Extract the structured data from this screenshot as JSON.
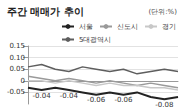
{
  "chart_data": {
    "type": "line",
    "title": "주간 매매가 추이",
    "subtitle": "(단위:%)",
    "categories": [
      null,
      null,
      null,
      null,
      null,
      null,
      null,
      null,
      null,
      null,
      null,
      null
    ],
    "series": [
      {
        "name": "서울",
        "color": "#222222",
        "values": [
          -0.03,
          -0.04,
          -0.03,
          -0.04,
          -0.05,
          -0.06,
          -0.05,
          -0.06,
          -0.05,
          -0.07,
          -0.08,
          -0.07
        ],
        "value_labels": [
          null,
          "-0.04",
          null,
          "-0.04",
          null,
          "-0.06",
          null,
          "-0.06",
          null,
          null,
          "-0.08",
          null
        ]
      },
      {
        "name": "신도시",
        "color": "#9a9a9a",
        "values": [
          0.02,
          0.01,
          0.0,
          0.01,
          0.0,
          -0.01,
          0.0,
          -0.01,
          -0.02,
          -0.01,
          -0.02,
          -0.03
        ]
      },
      {
        "name": "경기",
        "color": "#c8c8c8",
        "values": [
          0.0,
          0.0,
          -0.01,
          0.0,
          -0.01,
          -0.02,
          -0.01,
          -0.02,
          -0.02,
          -0.03,
          -0.03,
          -0.04
        ]
      },
      {
        "name": "5대광역시",
        "color": "#5e5e5e",
        "values": [
          0.06,
          0.07,
          0.05,
          0.04,
          0.06,
          0.05,
          0.04,
          0.05,
          0.03,
          0.04,
          0.05,
          0.04
        ]
      }
    ],
    "ylim": [
      -0.1,
      0.15
    ],
    "yticks": [
      -0.05,
      0,
      0.05,
      {
        "value": 0.1,
        "label": "0.10"
      },
      0.15
    ],
    "grid": true,
    "legend": "top",
    "data_labels": true
  }
}
